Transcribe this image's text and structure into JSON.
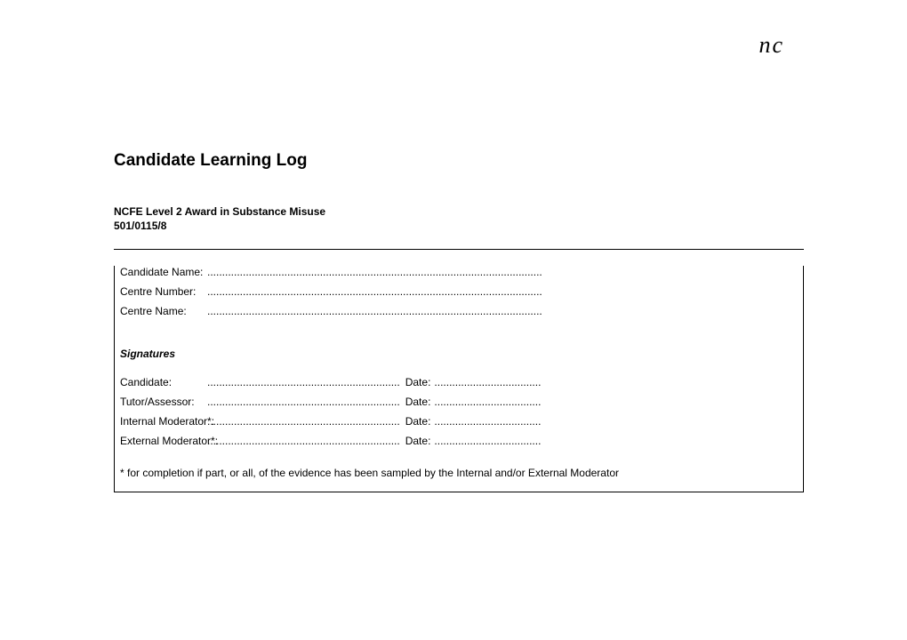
{
  "logo": "nc",
  "title": "Candidate Learning Log",
  "subtitle_line1": "NCFE Level 2 Award in Substance Misuse",
  "subtitle_line2": "501/0115/8",
  "fields": {
    "candidate_name": "Candidate Name:",
    "centre_number": "Centre Number:",
    "centre_name": "Centre Name:"
  },
  "dots_long": ".................................................................................................................",
  "signatures_header": "Signatures",
  "sig": {
    "candidate": "Candidate:",
    "tutor": "Tutor/Assessor:",
    "internal": "Internal Moderator*:",
    "external": "External Moderator*:"
  },
  "sig_dots": ".................................................................",
  "date_label": "Date:",
  "date_dots": "....................................",
  "footnote": "* for completion if part, or all, of the evidence has been sampled by the Internal and/or External Moderator"
}
